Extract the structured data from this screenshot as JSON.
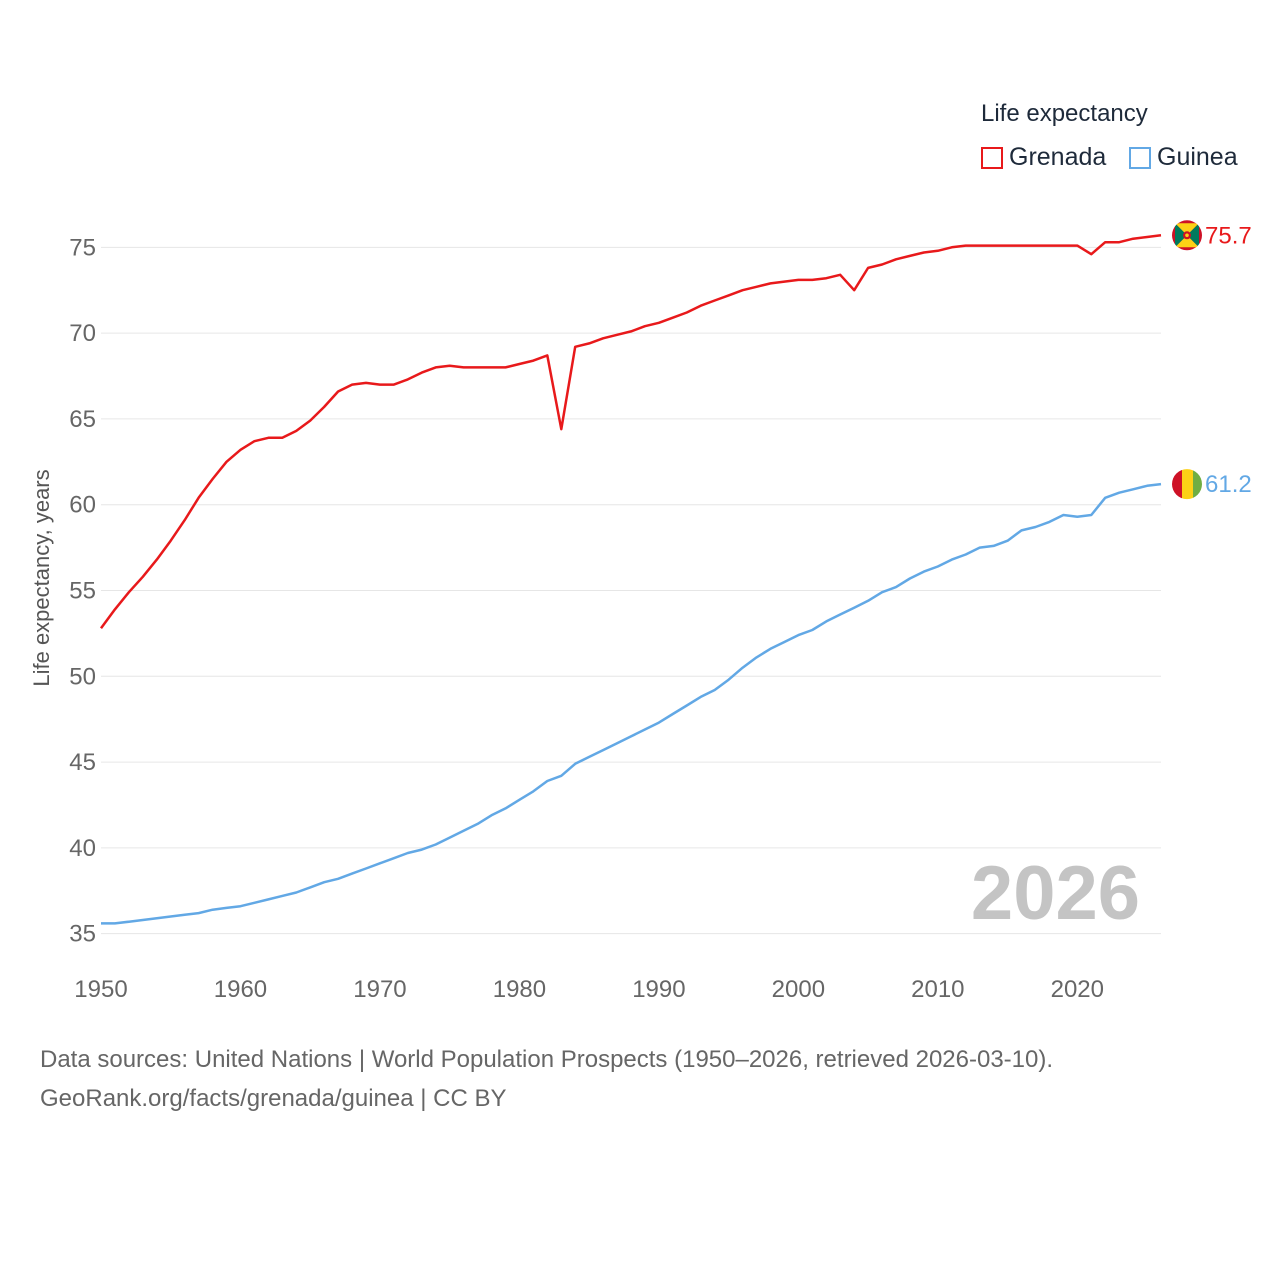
{
  "chart_data": {
    "type": "line",
    "legend_title": "Life expectancy",
    "ylabel": "Life expectancy, years",
    "xlabel": "",
    "xlim": [
      1950,
      2026
    ],
    "ylim": [
      33,
      77
    ],
    "x_ticks": [
      1950,
      1960,
      1970,
      1980,
      1990,
      2000,
      2010,
      2020
    ],
    "y_ticks": [
      35,
      40,
      45,
      50,
      55,
      60,
      65,
      70,
      75
    ],
    "year_label": "2026",
    "colors": {
      "Grenada": "#e8191b",
      "Guinea": "#62a8e5"
    },
    "series": [
      {
        "name": "Grenada",
        "end_label": "75.7",
        "flag": "grenada-flag",
        "x": [
          1950,
          1951,
          1952,
          1953,
          1954,
          1955,
          1956,
          1957,
          1958,
          1959,
          1960,
          1961,
          1962,
          1963,
          1964,
          1965,
          1966,
          1967,
          1968,
          1969,
          1970,
          1971,
          1972,
          1973,
          1974,
          1975,
          1976,
          1977,
          1978,
          1979,
          1980,
          1981,
          1982,
          1983,
          1984,
          1985,
          1986,
          1987,
          1988,
          1989,
          1990,
          1991,
          1992,
          1993,
          1994,
          1995,
          1996,
          1997,
          1998,
          1999,
          2000,
          2001,
          2002,
          2003,
          2004,
          2005,
          2006,
          2007,
          2008,
          2009,
          2010,
          2011,
          2012,
          2013,
          2014,
          2015,
          2016,
          2017,
          2018,
          2019,
          2020,
          2021,
          2022,
          2023,
          2024,
          2025,
          2026
        ],
        "values": [
          52.8,
          53.9,
          54.9,
          55.8,
          56.8,
          57.9,
          59.1,
          60.4,
          61.5,
          62.5,
          63.2,
          63.7,
          63.9,
          63.9,
          64.3,
          64.9,
          65.7,
          66.6,
          67.0,
          67.1,
          67.0,
          67.0,
          67.3,
          67.7,
          68.0,
          68.1,
          68.0,
          68.0,
          68.0,
          68.0,
          68.2,
          68.4,
          68.7,
          64.4,
          69.2,
          69.4,
          69.7,
          69.9,
          70.1,
          70.4,
          70.6,
          70.9,
          71.2,
          71.6,
          71.9,
          72.2,
          72.5,
          72.7,
          72.9,
          73.0,
          73.1,
          73.1,
          73.2,
          73.4,
          72.5,
          73.8,
          74.0,
          74.3,
          74.5,
          74.7,
          74.8,
          75.0,
          75.1,
          75.1,
          75.1,
          75.1,
          75.1,
          75.1,
          75.1,
          75.1,
          75.1,
          74.6,
          75.3,
          75.3,
          75.5,
          75.6,
          75.7
        ]
      },
      {
        "name": "Guinea",
        "end_label": "61.2",
        "flag": "guinea-flag",
        "x": [
          1950,
          1951,
          1952,
          1953,
          1954,
          1955,
          1956,
          1957,
          1958,
          1959,
          1960,
          1961,
          1962,
          1963,
          1964,
          1965,
          1966,
          1967,
          1968,
          1969,
          1970,
          1971,
          1972,
          1973,
          1974,
          1975,
          1976,
          1977,
          1978,
          1979,
          1980,
          1981,
          1982,
          1983,
          1984,
          1985,
          1986,
          1987,
          1988,
          1989,
          1990,
          1991,
          1992,
          1993,
          1994,
          1995,
          1996,
          1997,
          1998,
          1999,
          2000,
          2001,
          2002,
          2003,
          2004,
          2005,
          2006,
          2007,
          2008,
          2009,
          2010,
          2011,
          2012,
          2013,
          2014,
          2015,
          2016,
          2017,
          2018,
          2019,
          2020,
          2021,
          2022,
          2023,
          2024,
          2025,
          2026
        ],
        "values": [
          35.6,
          35.6,
          35.7,
          35.8,
          35.9,
          36.0,
          36.1,
          36.2,
          36.4,
          36.5,
          36.6,
          36.8,
          37.0,
          37.2,
          37.4,
          37.7,
          38.0,
          38.2,
          38.5,
          38.8,
          39.1,
          39.4,
          39.7,
          39.9,
          40.2,
          40.6,
          41.0,
          41.4,
          41.9,
          42.3,
          42.8,
          43.3,
          43.9,
          44.2,
          44.9,
          45.3,
          45.7,
          46.1,
          46.5,
          46.9,
          47.3,
          47.8,
          48.3,
          48.8,
          49.2,
          49.8,
          50.5,
          51.1,
          51.6,
          52.0,
          52.4,
          52.7,
          53.2,
          53.6,
          54.0,
          54.4,
          54.9,
          55.2,
          55.7,
          56.1,
          56.4,
          56.8,
          57.1,
          57.5,
          57.6,
          57.9,
          58.5,
          58.7,
          59.0,
          59.4,
          59.3,
          59.4,
          60.4,
          60.7,
          60.9,
          61.1,
          61.2
        ]
      }
    ]
  },
  "footer": {
    "line1": "Data sources: United Nations | World Population Prospects (1950–2026, retrieved 2026-03-10).",
    "line2": "GeoRank.org/facts/grenada/guinea | CC BY"
  }
}
